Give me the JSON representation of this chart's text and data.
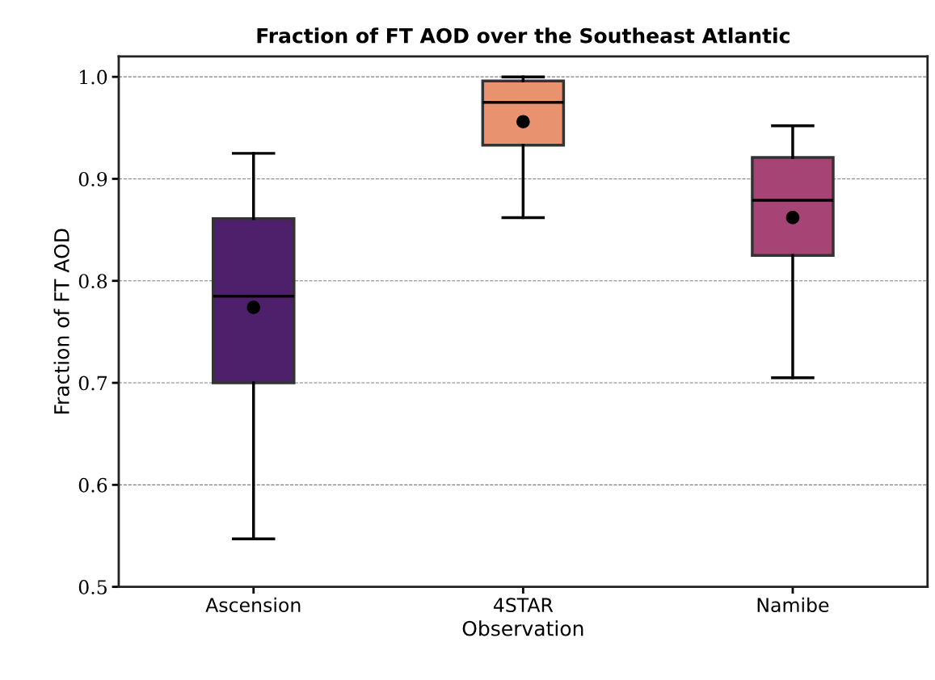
{
  "chart_data": {
    "type": "box",
    "title": "Fraction of FT AOD over the Southeast Atlantic",
    "xlabel": "Observation",
    "ylabel": "Fraction of FT AOD",
    "categories": [
      "Ascension",
      "4STAR",
      "Namibe"
    ],
    "colors": [
      "#4e1f6a",
      "#e8926f",
      "#a64575"
    ],
    "boxes": [
      {
        "low": 0.547,
        "q1": 0.7,
        "median": 0.785,
        "q3": 0.861,
        "high": 0.925,
        "mean": 0.774
      },
      {
        "low": 0.862,
        "q1": 0.933,
        "median": 0.975,
        "q3": 0.996,
        "high": 1.0,
        "mean": 0.956
      },
      {
        "low": 0.705,
        "q1": 0.825,
        "median": 0.879,
        "q3": 0.921,
        "high": 0.952,
        "mean": 0.862
      }
    ],
    "ylim": [
      0.5,
      1.02
    ],
    "yticks": [
      0.5,
      0.6,
      0.7,
      0.8,
      0.9,
      {
        "value": 1,
        "label": "1.0"
      }
    ],
    "grid": "y",
    "line_style": "dashed"
  }
}
